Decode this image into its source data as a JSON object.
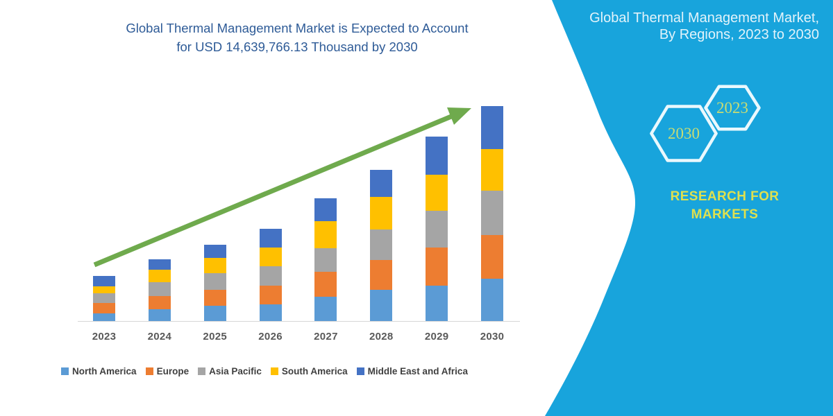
{
  "left_panel": {
    "title_line1": "Global Thermal Management Market is Expected to Account",
    "title_line2": "for USD 14,639,766.13 Thousand by 2030"
  },
  "right_panel": {
    "title_line1": "Global Thermal Management Market,",
    "title_line2": "By Regions, 2023 to 2030",
    "hexagon_back_label": "2023",
    "hexagon_front_label": "2030",
    "brand_line1": "RESEARCH FOR",
    "brand_line2": "MARKETS"
  },
  "colors": {
    "panel_bg": "#18a4dc",
    "panel_title": "#e2f3fa",
    "hex_stroke": "#eaf8fd",
    "hex_label": "#c8dc73",
    "brand_text": "#dee04f",
    "left_title": "#2e5b97",
    "arrow_green": "#6faa4d"
  },
  "chart_data": {
    "type": "bar",
    "stacked": true,
    "title": "Global Thermal Management Market is Expected to Account for USD 14,639,766.13 Thousand by 2030",
    "xlabel": "",
    "ylabel": "",
    "y_axis": "hidden (no value labels shown)",
    "gridlines": false,
    "legend_position": "bottom",
    "units": "relative height units (no value axis in source image); title states 2030 total = USD 14,639,766.13 Thousand",
    "categories": [
      "2023",
      "2024",
      "2025",
      "2026",
      "2027",
      "2028",
      "2029",
      "2030"
    ],
    "series": [
      {
        "name": "North America",
        "color": "#5b9bd5",
        "values": [
          12.3,
          18.3,
          23.3,
          24.7,
          35.7,
          46.0,
          51.7,
          61.7
        ]
      },
      {
        "name": "Europe",
        "color": "#ed7d31",
        "values": [
          15.0,
          19.0,
          22.3,
          27.7,
          36.7,
          43.3,
          55.0,
          63.3
        ]
      },
      {
        "name": "Asia Pacific",
        "color": "#a5a5a5",
        "values": [
          13.3,
          19.3,
          24.3,
          27.3,
          34.0,
          43.3,
          53.3,
          64.0
        ]
      },
      {
        "name": "South America",
        "color": "#ffc000",
        "values": [
          10.7,
          18.3,
          21.7,
          27.7,
          38.7,
          47.3,
          52.3,
          60.0
        ]
      },
      {
        "name": "Middle East and Africa",
        "color": "#4472c4",
        "values": [
          14.4,
          15.0,
          19.0,
          26.7,
          33.3,
          39.3,
          54.4,
          62.0
        ]
      }
    ],
    "totals": [
      65.7,
      90.0,
      110.6,
      134.1,
      178.4,
      219.2,
      266.7,
      311.0
    ],
    "annotations": [
      "green upward trend arrow from first bar to last bar"
    ]
  }
}
